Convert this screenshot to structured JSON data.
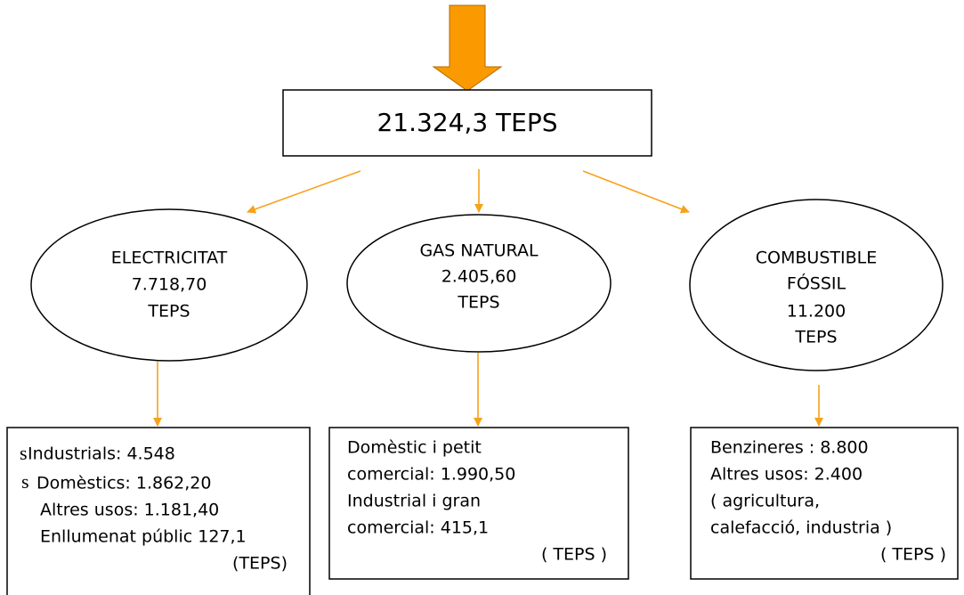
{
  "total": "21.324,3 TEPS",
  "nodes": [
    {
      "lines": [
        "ELECTRICITAT",
        "7.718,70",
        "TEPS"
      ]
    },
    {
      "lines": [
        "GAS NATURAL",
        "2.405,60",
        "TEPS"
      ]
    },
    {
      "lines": [
        "COMBUSTIBLE",
        "FÓSSIL",
        "11.200",
        "TEPS"
      ]
    }
  ],
  "breakdowns": [
    {
      "fragments": [
        "s",
        "s"
      ],
      "lines": [
        "Industrials: 4.548",
        "Domèstics: 1.862,20",
        "Altres usos: 1.181,40",
        "Enllumenat públic 127,1"
      ],
      "unit": "(TEPS)"
    },
    {
      "lines": [
        "Domèstic i petit",
        "comercial: 1.990,50",
        "Industrial i gran",
        "comercial: 415,1"
      ],
      "unit": "( TEPS )"
    },
    {
      "lines": [
        "Benzineres : 8.800",
        "Altres usos: 2.400",
        "( agricultura,",
        "calefacció, industria )"
      ],
      "unit": "( TEPS )"
    }
  ]
}
